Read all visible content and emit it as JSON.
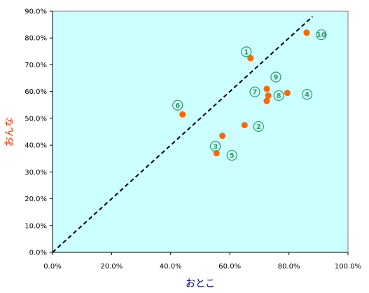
{
  "chart_data": {
    "type": "scatter",
    "title": "",
    "xlabel": "おとこ",
    "ylabel": "おんな",
    "xlim": [
      0,
      100
    ],
    "ylim": [
      0,
      90
    ],
    "xticks": [
      "0.0%",
      "20.0%",
      "40.0%",
      "60.0%",
      "80.0%",
      "100.0%"
    ],
    "yticks": [
      "0.0%",
      "10.0%",
      "20.0%",
      "30.0%",
      "40.0%",
      "50.0%",
      "60.0%",
      "70.0%",
      "80.0%",
      "90.0%"
    ],
    "grid": false,
    "legend": "none",
    "reference_line": {
      "style": "dashed",
      "x": [
        0,
        88
      ],
      "y": [
        0,
        88
      ]
    },
    "points": [
      {
        "label": "①",
        "x": 67,
        "y": 72.5
      },
      {
        "label": "②",
        "x": 65,
        "y": 47.5
      },
      {
        "label": "③",
        "x": 57.5,
        "y": 43.5
      },
      {
        "label": "④",
        "x": 79.5,
        "y": 59.5
      },
      {
        "label": "⑤",
        "x": 55.5,
        "y": 37
      },
      {
        "label": "⑥",
        "x": 44,
        "y": 51.5
      },
      {
        "label": "⑦",
        "x": 72.5,
        "y": 56.5
      },
      {
        "label": "⑧",
        "x": 73,
        "y": 58.5
      },
      {
        "label": "⑨",
        "x": 72.5,
        "y": 61
      },
      {
        "label": "⑩",
        "x": 86,
        "y": 82
      }
    ],
    "colors": {
      "plot_background": "#CCFFFF",
      "point": "#FF6600",
      "point_label": "#339966",
      "reference_line": "#000000",
      "ylabel": "#FF3300",
      "xlabel": "#000080"
    }
  }
}
